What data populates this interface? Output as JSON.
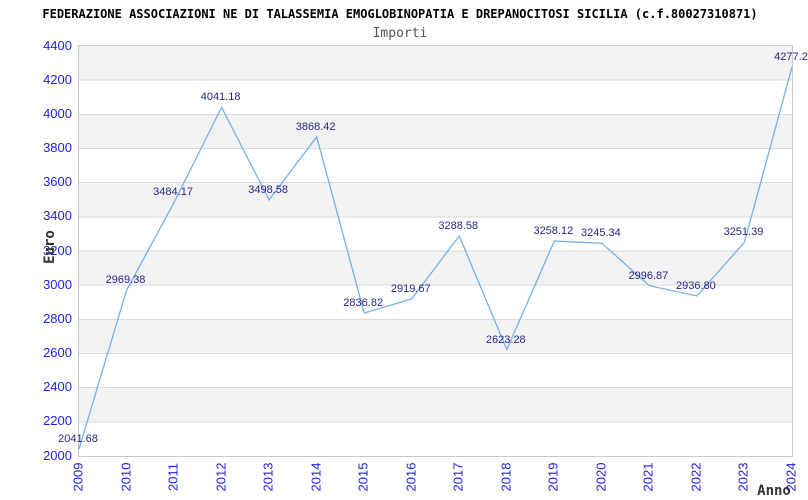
{
  "chart": {
    "title": "FEDERAZIONE ASSOCIAZIONI NE DI TALASSEMIA EMOGLOBINOPATIA E DREPANOCITOSI SICILIA (c.f.80027310871)",
    "subtitle": "Importi",
    "ylabel": "Euro",
    "xlabel": "Anno"
  },
  "chart_data": {
    "type": "line",
    "title": "Importi",
    "xlabel": "Anno",
    "ylabel": "Euro",
    "categories": [
      "2009",
      "2010",
      "2011",
      "2012",
      "2013",
      "2014",
      "2015",
      "2016",
      "2017",
      "2018",
      "2019",
      "2020",
      "2021",
      "2022",
      "2023",
      "2024"
    ],
    "values": [
      2041.68,
      2969.38,
      3484.17,
      4041.18,
      3498.58,
      3868.42,
      2836.82,
      2919.67,
      3288.58,
      2623.28,
      3258.12,
      3245.34,
      2996.87,
      2936.8,
      3251.39,
      4277.2
    ],
    "point_labels": [
      "2041.68",
      "2969.38",
      "3484.17",
      "4041.18",
      "3498.58",
      "3868.42",
      "2836.82",
      "2919.67",
      "3288.58",
      "2623.28",
      "3258.12",
      "3245.34",
      "2996.87",
      "2936.80",
      "3251.39",
      "4277.2"
    ],
    "ylim": [
      2000,
      4400
    ],
    "ytick_step": 200,
    "yticks": [
      "4400",
      "4200",
      "4000",
      "3800",
      "3600",
      "3400",
      "3200",
      "3000",
      "2800",
      "2600",
      "2400",
      "2200",
      "2000"
    ],
    "legend": "none",
    "grid": "horizontal-bands",
    "colors": {
      "line": "#74b2e8",
      "point_label": "#26268c",
      "tick_label": "#2222dd",
      "band_gray": "#f2f2f2",
      "band_white": "#ffffff",
      "gridline": "#d9d9d9",
      "plot_border": "#c9c9c9",
      "axis_name": "#333333",
      "title": "#000000",
      "subtitle": "#545454"
    }
  }
}
